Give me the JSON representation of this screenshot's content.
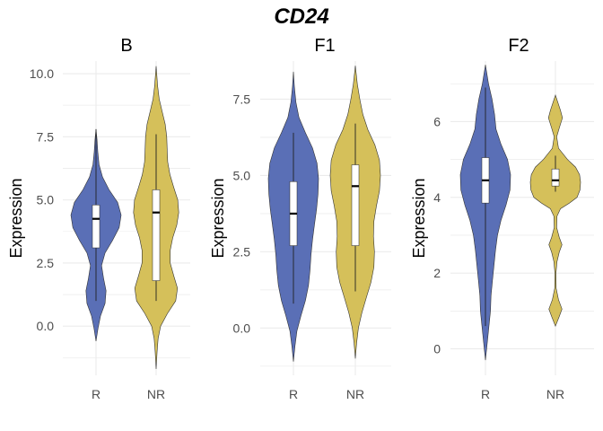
{
  "title": "CD24",
  "colors": {
    "R": "#5a6fb6",
    "NR": "#d5c05a",
    "grid": "#ebebeb",
    "outline": "#333333",
    "box": "#ffffff"
  },
  "chart_data": [
    {
      "type": "violin",
      "panel": "B",
      "title": "B",
      "ylabel": "Expression",
      "categories": [
        "R",
        "NR"
      ],
      "ylim": [
        -1.95,
        10.5
      ],
      "yticks": [
        0.0,
        2.5,
        5.0,
        7.5,
        10.0
      ],
      "ytick_labels": [
        "0.0",
        "2.5",
        "5.0",
        "7.5",
        "10.0"
      ],
      "series": [
        {
          "name": "R",
          "box": {
            "min": 1.0,
            "q1": 3.1,
            "median": 4.25,
            "q3": 4.8,
            "max": 7.8
          },
          "violin_range": [
            -0.6,
            7.8
          ],
          "density": [
            [
              -0.6,
              0.0
            ],
            [
              -0.1,
              0.08
            ],
            [
              0.4,
              0.18
            ],
            [
              0.9,
              0.36
            ],
            [
              1.4,
              0.4
            ],
            [
              1.9,
              0.3
            ],
            [
              2.4,
              0.22
            ],
            [
              2.9,
              0.36
            ],
            [
              3.4,
              0.66
            ],
            [
              3.9,
              0.92
            ],
            [
              4.4,
              1.0
            ],
            [
              4.9,
              0.86
            ],
            [
              5.4,
              0.52
            ],
            [
              5.9,
              0.26
            ],
            [
              6.4,
              0.12
            ],
            [
              6.9,
              0.07
            ],
            [
              7.4,
              0.04
            ],
            [
              7.8,
              0.0
            ]
          ]
        },
        {
          "name": "NR",
          "box": {
            "min": 1.0,
            "q1": 1.8,
            "median": 4.5,
            "q3": 5.4,
            "max": 7.6
          },
          "violin_range": [
            -1.7,
            10.3
          ],
          "density": [
            [
              -1.7,
              0.0
            ],
            [
              -1.0,
              0.04
            ],
            [
              -0.5,
              0.08
            ],
            [
              0.0,
              0.18
            ],
            [
              0.5,
              0.45
            ],
            [
              1.0,
              0.78
            ],
            [
              1.5,
              0.85
            ],
            [
              2.0,
              0.7
            ],
            [
              2.5,
              0.56
            ],
            [
              3.0,
              0.56
            ],
            [
              3.5,
              0.66
            ],
            [
              4.0,
              0.82
            ],
            [
              4.5,
              0.9
            ],
            [
              5.0,
              0.86
            ],
            [
              5.5,
              0.7
            ],
            [
              6.0,
              0.55
            ],
            [
              6.5,
              0.46
            ],
            [
              7.0,
              0.44
            ],
            [
              7.5,
              0.42
            ],
            [
              8.0,
              0.36
            ],
            [
              8.5,
              0.24
            ],
            [
              9.0,
              0.12
            ],
            [
              9.5,
              0.06
            ],
            [
              10.3,
              0.0
            ]
          ]
        }
      ]
    },
    {
      "type": "violin",
      "panel": "F1",
      "title": "F1",
      "ylabel": "Expression",
      "categories": [
        "R",
        "NR"
      ],
      "ylim": [
        -1.55,
        8.75
      ],
      "yticks": [
        0.0,
        2.5,
        5.0,
        7.5
      ],
      "ytick_labels": [
        "0.0",
        "2.5",
        "5.0",
        "7.5"
      ],
      "series": [
        {
          "name": "R",
          "box": {
            "min": 0.8,
            "q1": 2.7,
            "median": 3.75,
            "q3": 4.8,
            "max": 6.4
          },
          "violin_range": [
            -1.1,
            8.4
          ],
          "density": [
            [
              -1.1,
              0.0
            ],
            [
              -0.6,
              0.06
            ],
            [
              -0.1,
              0.14
            ],
            [
              0.4,
              0.3
            ],
            [
              0.9,
              0.48
            ],
            [
              1.4,
              0.6
            ],
            [
              1.9,
              0.66
            ],
            [
              2.4,
              0.7
            ],
            [
              2.9,
              0.76
            ],
            [
              3.4,
              0.84
            ],
            [
              3.9,
              0.92
            ],
            [
              4.4,
              0.98
            ],
            [
              4.9,
              1.0
            ],
            [
              5.4,
              0.94
            ],
            [
              5.9,
              0.76
            ],
            [
              6.4,
              0.48
            ],
            [
              6.9,
              0.22
            ],
            [
              7.4,
              0.1
            ],
            [
              7.9,
              0.04
            ],
            [
              8.4,
              0.0
            ]
          ]
        },
        {
          "name": "NR",
          "box": {
            "min": 1.2,
            "q1": 2.7,
            "median": 4.65,
            "q3": 5.35,
            "max": 6.7
          },
          "violin_range": [
            -1.0,
            8.6
          ],
          "density": [
            [
              -1.0,
              0.0
            ],
            [
              -0.5,
              0.05
            ],
            [
              0.0,
              0.12
            ],
            [
              0.5,
              0.26
            ],
            [
              1.0,
              0.44
            ],
            [
              1.5,
              0.62
            ],
            [
              2.0,
              0.74
            ],
            [
              2.5,
              0.76
            ],
            [
              3.0,
              0.72
            ],
            [
              3.5,
              0.74
            ],
            [
              4.0,
              0.84
            ],
            [
              4.5,
              0.96
            ],
            [
              5.0,
              1.0
            ],
            [
              5.5,
              0.96
            ],
            [
              6.0,
              0.78
            ],
            [
              6.5,
              0.5
            ],
            [
              7.0,
              0.3
            ],
            [
              7.5,
              0.18
            ],
            [
              8.0,
              0.08
            ],
            [
              8.6,
              0.0
            ]
          ]
        }
      ]
    },
    {
      "type": "violin",
      "panel": "F2",
      "title": "F2",
      "ylabel": "Expression",
      "categories": [
        "R",
        "NR"
      ],
      "ylim": [
        -0.7,
        7.6
      ],
      "yticks": [
        0,
        2,
        4,
        6
      ],
      "ytick_labels": [
        "0",
        "2",
        "4",
        "6"
      ],
      "series": [
        {
          "name": "R",
          "box": {
            "min": 0.6,
            "q1": 3.85,
            "median": 4.45,
            "q3": 5.05,
            "max": 6.9
          },
          "violin_range": [
            -0.3,
            7.5
          ],
          "density": [
            [
              -0.3,
              0.0
            ],
            [
              0.2,
              0.08
            ],
            [
              0.6,
              0.14
            ],
            [
              1.0,
              0.2
            ],
            [
              1.4,
              0.22
            ],
            [
              1.8,
              0.28
            ],
            [
              2.2,
              0.34
            ],
            [
              2.6,
              0.4
            ],
            [
              3.0,
              0.48
            ],
            [
              3.4,
              0.62
            ],
            [
              3.8,
              0.82
            ],
            [
              4.2,
              0.98
            ],
            [
              4.6,
              1.0
            ],
            [
              5.0,
              0.88
            ],
            [
              5.4,
              0.62
            ],
            [
              5.8,
              0.42
            ],
            [
              6.2,
              0.36
            ],
            [
              6.6,
              0.26
            ],
            [
              7.0,
              0.12
            ],
            [
              7.5,
              0.0
            ]
          ]
        },
        {
          "name": "NR",
          "box": {
            "min": 4.15,
            "q1": 4.3,
            "median": 4.45,
            "q3": 4.75,
            "max": 5.1
          },
          "violin_range": [
            0.6,
            6.7
          ],
          "density": [
            [
              0.6,
              0.0
            ],
            [
              0.85,
              0.15
            ],
            [
              1.05,
              0.26
            ],
            [
              1.3,
              0.12
            ],
            [
              1.6,
              0.03
            ],
            [
              2.0,
              0.02
            ],
            [
              2.3,
              0.06
            ],
            [
              2.55,
              0.15
            ],
            [
              2.75,
              0.26
            ],
            [
              2.95,
              0.15
            ],
            [
              3.2,
              0.05
            ],
            [
              3.5,
              0.06
            ],
            [
              3.7,
              0.2
            ],
            [
              3.85,
              0.56
            ],
            [
              4.0,
              0.86
            ],
            [
              4.2,
              0.98
            ],
            [
              4.4,
              1.0
            ],
            [
              4.6,
              0.96
            ],
            [
              4.8,
              0.8
            ],
            [
              5.0,
              0.48
            ],
            [
              5.3,
              0.12
            ],
            [
              5.6,
              0.05
            ],
            [
              5.85,
              0.16
            ],
            [
              6.1,
              0.28
            ],
            [
              6.3,
              0.2
            ],
            [
              6.7,
              0.0
            ]
          ]
        }
      ]
    }
  ]
}
